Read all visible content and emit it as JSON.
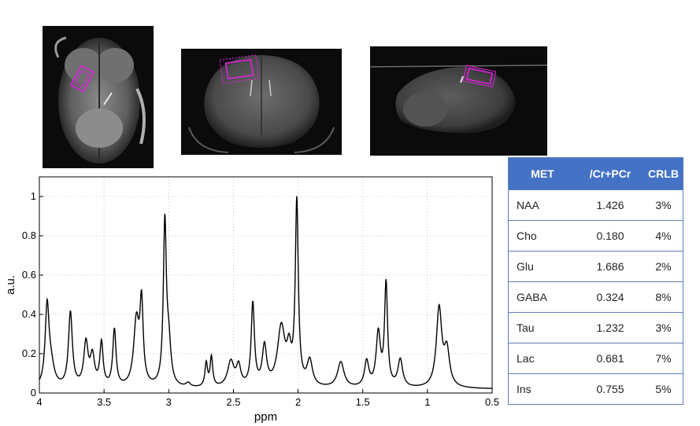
{
  "images": [
    {
      "name": "axial-slice",
      "view": "axial"
    },
    {
      "name": "coronal-slice",
      "view": "coronal"
    },
    {
      "name": "sagittal-slice",
      "view": "sagittal"
    }
  ],
  "voxel_color": "#e020e0",
  "chart_data": {
    "type": "line",
    "title": "",
    "xlabel": "ppm",
    "ylabel": "a.u.",
    "xlim": [
      4,
      0.5
    ],
    "ylim": [
      0,
      1.1
    ],
    "x_reversed": true,
    "grid": true,
    "x_ticks": [
      4,
      3.5,
      3,
      2.5,
      2,
      1.5,
      1,
      0.5
    ],
    "x_tick_labels": [
      "4",
      "3.5",
      "3",
      "2.5",
      "2",
      "1.5",
      "1",
      "0.5"
    ],
    "y_ticks": [
      0,
      0.2,
      0.4,
      0.6,
      0.8,
      1
    ],
    "y_tick_labels": [
      "0",
      "0.2",
      "0.4",
      "0.6",
      "0.8",
      "1"
    ],
    "line_color": "#000000",
    "baseline": 0.02,
    "peaks": [
      {
        "ppm": 3.94,
        "height": 0.4,
        "width": 0.018
      },
      {
        "ppm": 3.91,
        "height": 0.1,
        "width": 0.03
      },
      {
        "ppm": 3.76,
        "height": 0.38,
        "width": 0.018
      },
      {
        "ppm": 3.64,
        "height": 0.22,
        "width": 0.02
      },
      {
        "ppm": 3.59,
        "height": 0.15,
        "width": 0.02
      },
      {
        "ppm": 3.52,
        "height": 0.22,
        "width": 0.015
      },
      {
        "ppm": 3.42,
        "height": 0.29,
        "width": 0.015
      },
      {
        "ppm": 3.25,
        "height": 0.33,
        "width": 0.025
      },
      {
        "ppm": 3.21,
        "height": 0.4,
        "width": 0.015
      },
      {
        "ppm": 3.03,
        "height": 0.82,
        "width": 0.014
      },
      {
        "ppm": 3.0,
        "height": 0.2,
        "width": 0.02
      },
      {
        "ppm": 2.85,
        "height": 0.02,
        "width": 0.02
      },
      {
        "ppm": 2.71,
        "height": 0.12,
        "width": 0.012
      },
      {
        "ppm": 2.67,
        "height": 0.15,
        "width": 0.012
      },
      {
        "ppm": 2.52,
        "height": 0.13,
        "width": 0.03
      },
      {
        "ppm": 2.46,
        "height": 0.1,
        "width": 0.02
      },
      {
        "ppm": 2.35,
        "height": 0.42,
        "width": 0.015
      },
      {
        "ppm": 2.26,
        "height": 0.2,
        "width": 0.02
      },
      {
        "ppm": 2.13,
        "height": 0.3,
        "width": 0.035
      },
      {
        "ppm": 2.07,
        "height": 0.15,
        "width": 0.02
      },
      {
        "ppm": 2.01,
        "height": 0.93,
        "width": 0.014
      },
      {
        "ppm": 1.91,
        "height": 0.13,
        "width": 0.025
      },
      {
        "ppm": 1.67,
        "height": 0.13,
        "width": 0.03
      },
      {
        "ppm": 1.47,
        "height": 0.13,
        "width": 0.02
      },
      {
        "ppm": 1.38,
        "height": 0.27,
        "width": 0.02
      },
      {
        "ppm": 1.32,
        "height": 0.52,
        "width": 0.014
      },
      {
        "ppm": 1.21,
        "height": 0.14,
        "width": 0.022
      },
      {
        "ppm": 0.91,
        "height": 0.4,
        "width": 0.025
      },
      {
        "ppm": 0.85,
        "height": 0.18,
        "width": 0.025
      }
    ]
  },
  "table": {
    "headers": [
      "MET",
      "/Cr+PCr",
      "CRLB"
    ],
    "rows": [
      [
        "NAA",
        "1.426",
        "3%"
      ],
      [
        "Cho",
        "0.180",
        "4%"
      ],
      [
        "Glu",
        "1.686",
        "2%"
      ],
      [
        "GABA",
        "0.324",
        "8%"
      ],
      [
        "Tau",
        "1.232",
        "3%"
      ],
      [
        "Lac",
        "0.681",
        "7%"
      ],
      [
        "Ins",
        "0.755",
        "5%"
      ]
    ],
    "header_bg": "#4472c4",
    "border_color": "#5b7fb8"
  }
}
